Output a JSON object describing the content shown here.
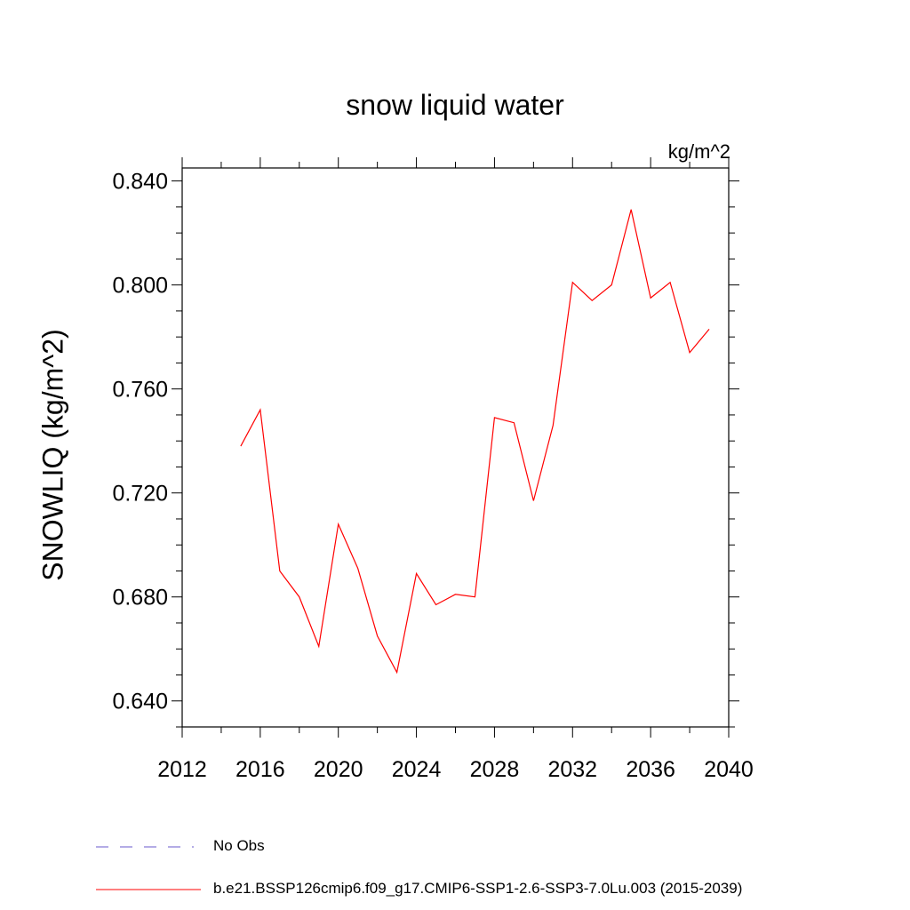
{
  "chart_data": {
    "type": "line",
    "title": "snow liquid water",
    "units_label": "kg/m^2",
    "ylabel": "SNOWLIQ  (kg/m^2)",
    "xlabel": "",
    "xlim": [
      2012,
      2040
    ],
    "ylim": [
      0.63,
      0.845
    ],
    "x_ticks": [
      2012,
      2016,
      2020,
      2024,
      2028,
      2032,
      2036,
      2040
    ],
    "y_ticks": [
      0.64,
      0.68,
      0.72,
      0.76,
      0.8,
      0.84
    ],
    "y_tick_labels": [
      "0.640",
      "0.680",
      "0.720",
      "0.760",
      "0.800",
      "0.840"
    ],
    "x_minor_step": 2,
    "y_minor_step": 0.01,
    "grid": false,
    "legend_placement": "bottom",
    "series": [
      {
        "name": "b.e21.BSSP126cmip6.f09_g17.CMIP6-SSP1-2.6-SSP3-7.0Lu.003 (2015-2039)",
        "color": "#ff0000",
        "x": [
          2015,
          2016,
          2017,
          2018,
          2019,
          2020,
          2021,
          2022,
          2023,
          2024,
          2025,
          2026,
          2027,
          2028,
          2029,
          2030,
          2031,
          2032,
          2033,
          2034,
          2035,
          2036,
          2037,
          2038,
          2039
        ],
        "values": [
          0.738,
          0.752,
          0.69,
          0.68,
          0.661,
          0.708,
          0.691,
          0.665,
          0.651,
          0.689,
          0.677,
          0.681,
          0.68,
          0.749,
          0.747,
          0.717,
          0.746,
          0.801,
          0.794,
          0.8,
          0.829,
          0.795,
          0.801,
          0.774,
          0.783
        ]
      }
    ],
    "legend": [
      {
        "label": "No Obs",
        "color": "#6a5acd",
        "style": "dashed"
      },
      {
        "label": "b.e21.BSSP126cmip6.f09_g17.CMIP6-SSP1-2.6-SSP3-7.0Lu.003 (2015-2039)",
        "color": "#ff0000",
        "style": "solid"
      }
    ]
  }
}
